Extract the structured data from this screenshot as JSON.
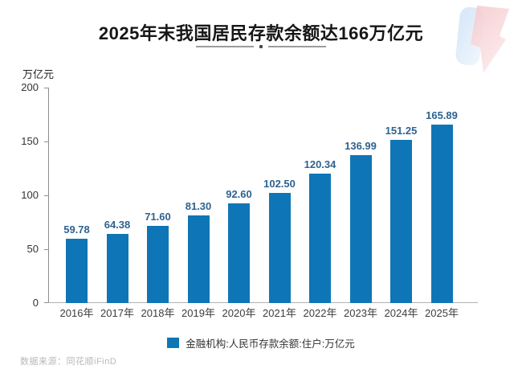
{
  "title": "2025年末我国居民存款余额达166万亿元",
  "source": "数据来源：同花顺iFinD",
  "chart_data": {
    "type": "bar",
    "title": "2025年末我国居民存款余额达166万亿元",
    "categories": [
      "2016年",
      "2017年",
      "2018年",
      "2019年",
      "2020年",
      "2021年",
      "2022年",
      "2023年",
      "2024年",
      "2025年"
    ],
    "values": [
      59.78,
      64.38,
      71.6,
      81.3,
      92.6,
      102.5,
      120.34,
      136.99,
      151.25,
      165.89
    ],
    "value_labels": [
      "59.78",
      "64.38",
      "71.60",
      "81.30",
      "92.60",
      "102.50",
      "120.34",
      "136.99",
      "151.25",
      "165.89"
    ],
    "ylabel": "万亿元",
    "xlabel": "",
    "y_ticks": [
      0,
      50,
      100,
      150,
      200
    ],
    "ylim": [
      0,
      200
    ],
    "grid": "off",
    "legend_position": "bottom",
    "legend": "金融机构:人民币存款余额:住户:万亿元",
    "bar_color": "#0e76b6",
    "value_label_color": "#2f628f",
    "axis_color": "#8e8e8e"
  }
}
